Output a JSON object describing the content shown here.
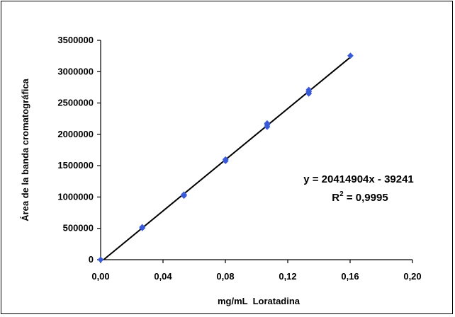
{
  "chart_data": {
    "type": "scatter",
    "xlabel": "mg/mL  Loratadina",
    "ylabel": "Área de la banda cromatográfica",
    "xlim": [
      0,
      0.2
    ],
    "ylim": [
      0,
      3500000
    ],
    "x_ticks": [
      "0,00",
      "0,04",
      "0,08",
      "0,12",
      "0,16",
      "0,20"
    ],
    "y_ticks": [
      "0",
      "500000",
      "1000000",
      "1500000",
      "2000000",
      "2500000",
      "3000000",
      "3500000"
    ],
    "grid": false,
    "series": [
      {
        "color": "#3a5bd9",
        "points": [
          {
            "x": 0.0,
            "y": 0
          },
          {
            "x": 0.0267,
            "y": 505000
          },
          {
            "x": 0.0267,
            "y": 520000
          },
          {
            "x": 0.0534,
            "y": 1020000
          },
          {
            "x": 0.0534,
            "y": 1040000
          },
          {
            "x": 0.0801,
            "y": 1575000
          },
          {
            "x": 0.0801,
            "y": 1600000
          },
          {
            "x": 0.1068,
            "y": 2120000
          },
          {
            "x": 0.1068,
            "y": 2150000
          },
          {
            "x": 0.1068,
            "y": 2175000
          },
          {
            "x": 0.1335,
            "y": 2650000
          },
          {
            "x": 0.1335,
            "y": 2680000
          },
          {
            "x": 0.1335,
            "y": 2710000
          },
          {
            "x": 0.1602,
            "y": 3255000
          }
        ]
      }
    ],
    "trendline": {
      "slope": 20414904,
      "intercept": -39241,
      "x_range": [
        0,
        0.1602
      ],
      "color": "#000000"
    },
    "annotations": {
      "equation": "y = 20414904x - 39241",
      "r2_prefix": "R",
      "r2_exp": "2",
      "r2_value": " = 0,9995"
    }
  }
}
